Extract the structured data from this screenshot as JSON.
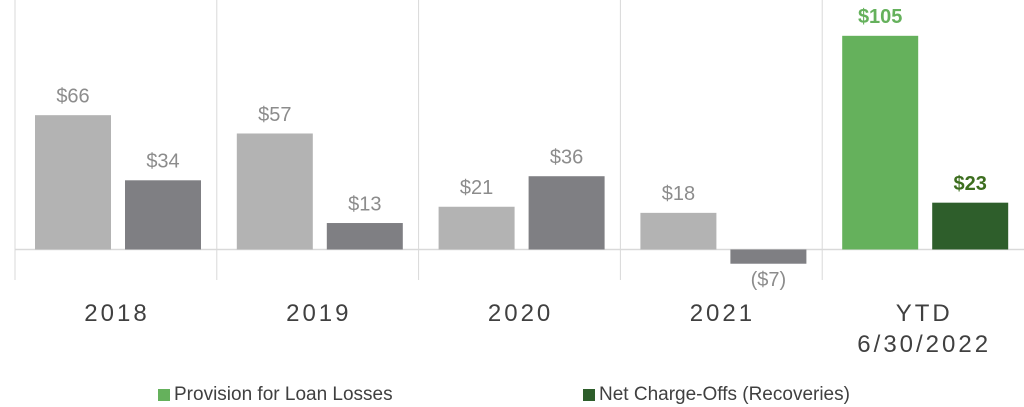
{
  "chart_data": {
    "type": "bar",
    "categories": [
      "2018",
      "2019",
      "2020",
      "2021",
      "YTD\n6/30/2022"
    ],
    "series": [
      {
        "name": "Provision for Loan Losses",
        "color": "#65b15c",
        "values": [
          66,
          57,
          21,
          18,
          105
        ],
        "value_labels": [
          "$66",
          "$57",
          "$21",
          "$18",
          "$105"
        ],
        "point_colors": [
          "#b3b3b3",
          "#b3b3b3",
          "#b3b3b3",
          "#b3b3b3",
          "#65b15c"
        ],
        "label_colors": [
          "#8c8c8c",
          "#8c8c8c",
          "#8c8c8c",
          "#8c8c8c",
          "#65b15c"
        ]
      },
      {
        "name": "Net Charge-Offs (Recoveries)",
        "color": "#2e5e2b",
        "values": [
          34,
          13,
          36,
          -7,
          23
        ],
        "value_labels": [
          "$34",
          "$13",
          "$36",
          "($7)",
          "$23"
        ],
        "point_colors": [
          "#7f7f83",
          "#7f7f83",
          "#7f7f83",
          "#7f7f83",
          "#2e5e2b"
        ],
        "label_colors": [
          "#8c8c8c",
          "#8c8c8c",
          "#8c8c8c",
          "#8c8c8c",
          "#3d6e1f"
        ]
      }
    ],
    "ylim": [
      -15,
      122.6
    ],
    "emphasis": [
      false,
      false,
      false,
      false,
      true
    ]
  }
}
